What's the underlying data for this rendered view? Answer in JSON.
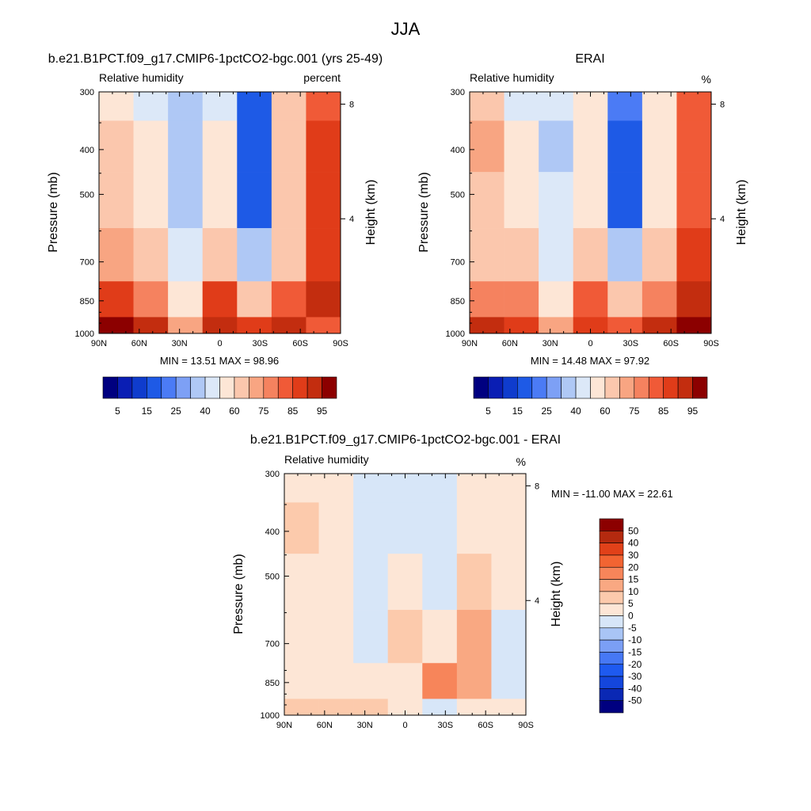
{
  "page": {
    "title": "JJA"
  },
  "panels": [
    {
      "id": "model",
      "title": "b.e21.B1PCT.f09_g17.CMIP6-1pctCO2-bgc.001 (yrs 25-49)",
      "left_label": "Relative humidity",
      "right_label": "percent",
      "minmax": "MIN = 13.51 MAX = 98.96"
    },
    {
      "id": "erai",
      "title": "ERAI",
      "left_label": "Relative humidity",
      "right_label": "%",
      "minmax": "MIN = 14.48 MAX = 97.92"
    },
    {
      "id": "diff",
      "title": "b.e21.B1PCT.f09_g17.CMIP6-1pctCO2-bgc.001 - ERAI",
      "left_label": "Relative humidity",
      "right_label": "%",
      "minmax": "MIN = -11.00 MAX = 22.61"
    }
  ],
  "axes": {
    "ylabel": "Pressure (mb)",
    "y2label": "Height (km)",
    "y_ticks": [
      "300",
      "400",
      "500",
      "700",
      "850",
      "1000"
    ],
    "y2_ticks": [
      "8",
      "4"
    ],
    "x_ticks": [
      "90N",
      "60N",
      "30N",
      "0",
      "30S",
      "60S",
      "90S"
    ]
  },
  "colorbars": {
    "abs": {
      "colors": [
        "#000080",
        "#0a1eb4",
        "#0f3ccd",
        "#1e5ae6",
        "#4b7bf5",
        "#7da0f5",
        "#afc8f5",
        "#dce8f8",
        "#fde6d6",
        "#fbc7ad",
        "#f8a582",
        "#f5825f",
        "#f05a37",
        "#e03c19",
        "#c32d0f",
        "#8c0000"
      ],
      "tick_labels": [
        "5",
        "15",
        "25",
        "40",
        "60",
        "75",
        "85",
        "95"
      ]
    },
    "diff": {
      "colors": [
        "#000080",
        "#0a28b4",
        "#1446dc",
        "#1e5af0",
        "#4678f5",
        "#7b9ff5",
        "#a9c5f5",
        "#d7e6f8",
        "#fde6d6",
        "#fccaac",
        "#f9a882",
        "#f7855a",
        "#f26432",
        "#e14119",
        "#b42a0f",
        "#8c0000"
      ],
      "tick_labels": [
        "50",
        "40",
        "30",
        "20",
        "15",
        "10",
        "5",
        "0",
        "-5",
        "-10",
        "-15",
        "-20",
        "-30",
        "-40",
        "-50"
      ]
    }
  },
  "chart_data": [
    {
      "type": "heatmap",
      "title": "b.e21.B1PCT.f09_g17.CMIP6-1pctCO2-bgc.001 (yrs 25-49)",
      "variable": "Relative humidity",
      "units": "percent",
      "xlabel": "",
      "ylabel": "Pressure (mb)",
      "y2label": "Height (km)",
      "x": [
        "90N",
        "60N",
        "30N",
        "0",
        "30S",
        "60S",
        "90S"
      ],
      "y": [
        300,
        400,
        500,
        700,
        850,
        1000
      ],
      "values": [
        [
          50,
          45,
          35,
          48,
          18,
          60,
          80
        ],
        [
          60,
          50,
          30,
          50,
          15,
          60,
          85
        ],
        [
          65,
          55,
          35,
          52,
          15,
          60,
          85
        ],
        [
          72,
          65,
          42,
          60,
          30,
          65,
          88
        ],
        [
          85,
          78,
          50,
          85,
          65,
          82,
          92
        ],
        [
          96,
          90,
          72,
          90,
          88,
          90,
          80
        ]
      ],
      "min": 13.51,
      "max": 98.96
    },
    {
      "type": "heatmap",
      "title": "ERAI",
      "variable": "Relative humidity",
      "units": "%",
      "xlabel": "",
      "ylabel": "Pressure (mb)",
      "y2label": "Height (km)",
      "x": [
        "90N",
        "60N",
        "30N",
        "0",
        "30S",
        "60S",
        "90S"
      ],
      "y": [
        300,
        400,
        500,
        700,
        850,
        1000
      ],
      "values": [
        [
          62,
          48,
          42,
          52,
          20,
          55,
          80
        ],
        [
          72,
          52,
          35,
          52,
          15,
          55,
          80
        ],
        [
          62,
          55,
          40,
          55,
          18,
          55,
          82
        ],
        [
          62,
          60,
          45,
          60,
          35,
          62,
          88
        ],
        [
          78,
          75,
          52,
          82,
          62,
          78,
          92
        ],
        [
          92,
          85,
          70,
          88,
          80,
          90,
          96
        ]
      ],
      "min": 14.48,
      "max": 97.92
    },
    {
      "type": "heatmap",
      "title": "b.e21.B1PCT.f09_g17.CMIP6-1pctCO2-bgc.001 - ERAI",
      "variable": "Relative humidity",
      "units": "%",
      "xlabel": "",
      "ylabel": "Pressure (mb)",
      "y2label": "Height (km)",
      "x": [
        "90N",
        "60N",
        "30N",
        "0",
        "30S",
        "60S",
        "90S"
      ],
      "y": [
        300,
        400,
        500,
        700,
        850,
        1000
      ],
      "values": [
        [
          2,
          4,
          -3,
          -2,
          -4,
          3,
          2
        ],
        [
          6,
          3,
          -2,
          -2,
          -4,
          3,
          2
        ],
        [
          4,
          2,
          -3,
          4,
          -2,
          6,
          3
        ],
        [
          3,
          3,
          -2,
          8,
          3,
          14,
          -3
        ],
        [
          4,
          4,
          3,
          4,
          17,
          10,
          -4
        ],
        [
          5,
          6,
          7,
          3,
          -3,
          4,
          3
        ]
      ],
      "min": -11.0,
      "max": 22.61
    }
  ]
}
